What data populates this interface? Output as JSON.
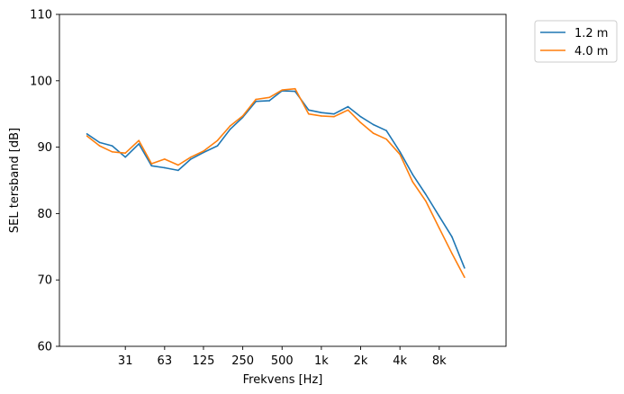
{
  "chart_data": {
    "type": "line",
    "title": "",
    "xlabel": "Frekvens [Hz]",
    "ylabel": "SEL tersband [dB]",
    "x_scale": "log",
    "x": [
      16,
      20,
      25,
      31.5,
      40,
      50,
      63,
      80,
      100,
      125,
      160,
      200,
      250,
      315,
      400,
      500,
      630,
      800,
      1000,
      1250,
      1600,
      2000,
      2500,
      3150,
      4000,
      5000,
      6300,
      8000,
      10000,
      12500,
      16000
    ],
    "xticks": [
      31.5,
      63,
      125,
      250,
      500,
      1000,
      2000,
      4000,
      8000
    ],
    "xtick_labels": [
      "31",
      "63",
      "125",
      "250",
      "500",
      "1k",
      "2k",
      "4k",
      "8k"
    ],
    "ylim": [
      60,
      110
    ],
    "yticks": [
      60,
      70,
      80,
      90,
      100,
      110
    ],
    "grid": false,
    "legend_placement": "outside-top-right",
    "series": [
      {
        "name": "1.2 m",
        "color": "#1f77b4",
        "values": [
          92.0,
          90.7,
          90.2,
          88.5,
          90.5,
          87.2,
          86.9,
          86.5,
          88.2,
          89.2,
          90.2,
          92.7,
          94.5,
          96.9,
          97.0,
          98.5,
          98.4,
          95.6,
          95.2,
          95.0,
          96.1,
          94.6,
          93.4,
          92.5,
          89.3,
          85.9,
          82.9,
          79.6,
          76.5,
          71.8,
          null
        ]
      },
      {
        "name": "4.0 m",
        "color": "#ff7f0e",
        "values": [
          91.7,
          90.2,
          89.3,
          89.1,
          91.0,
          87.5,
          88.2,
          87.3,
          88.5,
          89.4,
          91.0,
          93.2,
          94.7,
          97.2,
          97.5,
          98.6,
          98.8,
          95.0,
          94.7,
          94.6,
          95.6,
          93.7,
          92.1,
          91.2,
          88.9,
          84.8,
          81.9,
          77.8,
          74.0,
          70.4,
          null
        ]
      }
    ]
  }
}
